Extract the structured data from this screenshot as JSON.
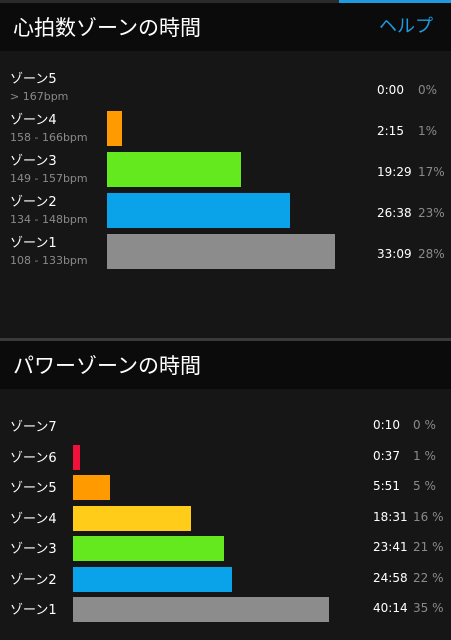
{
  "heart_rate_section": {
    "title": "心拍数ゾーンの時間",
    "help_label": "ヘルプ",
    "zones": [
      {
        "name": "ゾーン5",
        "range": "> 167bpm",
        "time": "0:00",
        "percent": "0%",
        "fraction": 0.0,
        "color": "#ff0000"
      },
      {
        "name": "ゾーン4",
        "range": "158 - 166bpm",
        "time": "2:15",
        "percent": "1%",
        "fraction": 0.0677,
        "color": "#ff9a00"
      },
      {
        "name": "ゾーン3",
        "range": "149 - 157bpm",
        "time": "19:29",
        "percent": "17%",
        "fraction": 0.5876,
        "color": "#64e81e"
      },
      {
        "name": "ゾーン2",
        "range": "134 - 148bpm",
        "time": "26:38",
        "percent": "23%",
        "fraction": 0.8046,
        "color": "#0aa3ea"
      },
      {
        "name": "ゾーン1",
        "range": "108 - 133bpm",
        "time": "33:09",
        "percent": "28%",
        "fraction": 1.0,
        "color": "#8c8c8c"
      }
    ]
  },
  "power_section": {
    "title": "パワーゾーンの時間",
    "zones": [
      {
        "name": "ゾーン7",
        "time": "0:10",
        "percent": "0 %",
        "fraction": 0.0,
        "color": "#ff1a1a"
      },
      {
        "name": "ゾーン6",
        "time": "0:37",
        "percent": "1 %",
        "fraction": 0.0154,
        "color": "#f0113a"
      },
      {
        "name": "ゾーン5",
        "time": "5:51",
        "percent": "5 %",
        "fraction": 0.1458,
        "color": "#ff9a00"
      },
      {
        "name": "ゾーン4",
        "time": "18:31",
        "percent": "16 %",
        "fraction": 0.4614,
        "color": "#ffcc1a"
      },
      {
        "name": "ゾーン3",
        "time": "23:41",
        "percent": "21 %",
        "fraction": 0.5901,
        "color": "#64e81e"
      },
      {
        "name": "ゾーン2",
        "time": "24:58",
        "percent": "22 %",
        "fraction": 0.6221,
        "color": "#0aa3ea"
      },
      {
        "name": "ゾーン1",
        "time": "40:14",
        "percent": "35 %",
        "fraction": 1.0,
        "color": "#8c8c8c"
      }
    ]
  }
}
